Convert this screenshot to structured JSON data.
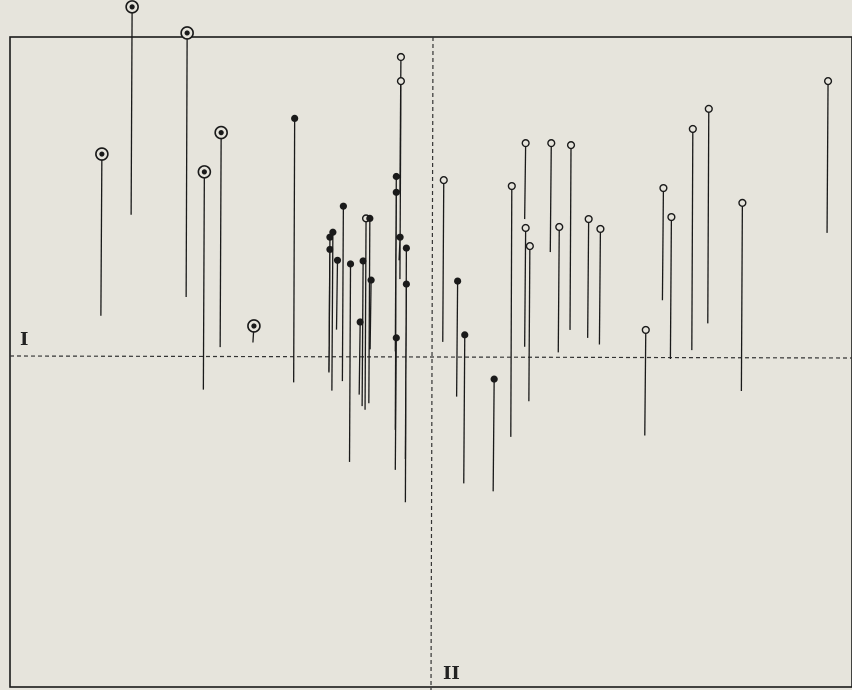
{
  "chart_data": {
    "type": "scatter",
    "description_axes": {
      "axis_1_label": "I",
      "axis_2_label": "II"
    },
    "xlim": [
      -1.0,
      1.0
    ],
    "ylim": [
      -1.0,
      1.0
    ],
    "grid": false,
    "legend": "none",
    "marker_types": [
      "double-circle",
      "filled",
      "open"
    ],
    "points": [
      {
        "x": -0.786,
        "y": 0.615,
        "len": -0.49,
        "m": "double-circle"
      },
      {
        "x": -0.714,
        "y": 1.061,
        "len": -0.63,
        "m": "double-circle"
      },
      {
        "x": -0.583,
        "y": 0.982,
        "len": -0.8,
        "m": "double-circle"
      },
      {
        "x": -0.542,
        "y": 0.561,
        "len": -0.66,
        "m": "double-circle"
      },
      {
        "x": -0.502,
        "y": 0.68,
        "len": -0.65,
        "m": "double-circle"
      },
      {
        "x": -0.424,
        "y": 0.094,
        "len": -0.05,
        "m": "double-circle"
      },
      {
        "x": -0.327,
        "y": 0.723,
        "len": -0.8,
        "m": "filled"
      },
      {
        "x": -0.243,
        "y": 0.363,
        "len": -0.41,
        "m": "filled"
      },
      {
        "x": -0.243,
        "y": 0.326,
        "len": -0.37,
        "m": "filled"
      },
      {
        "x": -0.236,
        "y": 0.378,
        "len": -0.48,
        "m": "filled"
      },
      {
        "x": -0.225,
        "y": 0.293,
        "len": -0.21,
        "m": "filled"
      },
      {
        "x": -0.211,
        "y": 0.457,
        "len": -0.53,
        "m": "filled"
      },
      {
        "x": -0.194,
        "y": 0.282,
        "len": -0.6,
        "m": "filled"
      },
      {
        "x": -0.171,
        "y": 0.106,
        "len": -0.22,
        "m": "filled"
      },
      {
        "x": -0.164,
        "y": 0.291,
        "len": -0.44,
        "m": "filled"
      },
      {
        "x": -0.157,
        "y": 0.42,
        "len": -0.58,
        "m": "open"
      },
      {
        "x": -0.148,
        "y": 0.42,
        "len": -0.56,
        "m": "filled"
      },
      {
        "x": -0.145,
        "y": 0.233,
        "len": -0.21,
        "m": "filled"
      },
      {
        "x": -0.085,
        "y": 0.547,
        "len": -0.53,
        "m": "filled"
      },
      {
        "x": -0.085,
        "y": 0.499,
        "len": -0.72,
        "m": "filled"
      },
      {
        "x": -0.085,
        "y": 0.058,
        "len": -0.4,
        "m": "filled"
      },
      {
        "x": -0.076,
        "y": 0.363,
        "len": -0.07,
        "m": "filled"
      },
      {
        "x": -0.074,
        "y": 0.909,
        "len": -0.41,
        "m": "open"
      },
      {
        "x": -0.074,
        "y": 0.836,
        "len": -0.6,
        "m": "open"
      },
      {
        "x": -0.061,
        "y": 0.33,
        "len": -0.77,
        "m": "filled"
      },
      {
        "x": -0.061,
        "y": 0.221,
        "len": -0.53,
        "m": "filled"
      },
      {
        "x": 0.028,
        "y": 0.536,
        "len": -0.49,
        "m": "open"
      },
      {
        "x": 0.061,
        "y": 0.23,
        "len": -0.35,
        "m": "filled"
      },
      {
        "x": 0.078,
        "y": 0.067,
        "len": -0.45,
        "m": "filled"
      },
      {
        "x": 0.148,
        "y": -0.067,
        "len": -0.34,
        "m": "filled"
      },
      {
        "x": 0.19,
        "y": 0.518,
        "len": -0.76,
        "m": "open"
      },
      {
        "x": 0.223,
        "y": 0.391,
        "len": -0.36,
        "m": "open"
      },
      {
        "x": 0.223,
        "y": 0.648,
        "len": -0.23,
        "m": "open"
      },
      {
        "x": 0.233,
        "y": 0.336,
        "len": -0.47,
        "m": "open"
      },
      {
        "x": 0.284,
        "y": 0.648,
        "len": -0.33,
        "m": "open"
      },
      {
        "x": 0.303,
        "y": 0.394,
        "len": -0.38,
        "m": "open"
      },
      {
        "x": 0.331,
        "y": 0.642,
        "len": -0.56,
        "m": "open"
      },
      {
        "x": 0.373,
        "y": 0.418,
        "len": -0.36,
        "m": "open"
      },
      {
        "x": 0.401,
        "y": 0.388,
        "len": -0.35,
        "m": "open"
      },
      {
        "x": 0.509,
        "y": 0.082,
        "len": -0.32,
        "m": "open"
      },
      {
        "x": 0.551,
        "y": 0.512,
        "len": -0.34,
        "m": "open"
      },
      {
        "x": 0.57,
        "y": 0.424,
        "len": -0.43,
        "m": "open"
      },
      {
        "x": 0.621,
        "y": 0.691,
        "len": -0.67,
        "m": "open"
      },
      {
        "x": 0.659,
        "y": 0.752,
        "len": -0.65,
        "m": "open"
      },
      {
        "x": 0.739,
        "y": 0.467,
        "len": -0.57,
        "m": "open"
      },
      {
        "x": 0.943,
        "y": 0.836,
        "len": -0.46,
        "m": "open"
      }
    ]
  },
  "colors": {
    "ink": "#1a1a1a",
    "paper": "#e6e4dc"
  }
}
